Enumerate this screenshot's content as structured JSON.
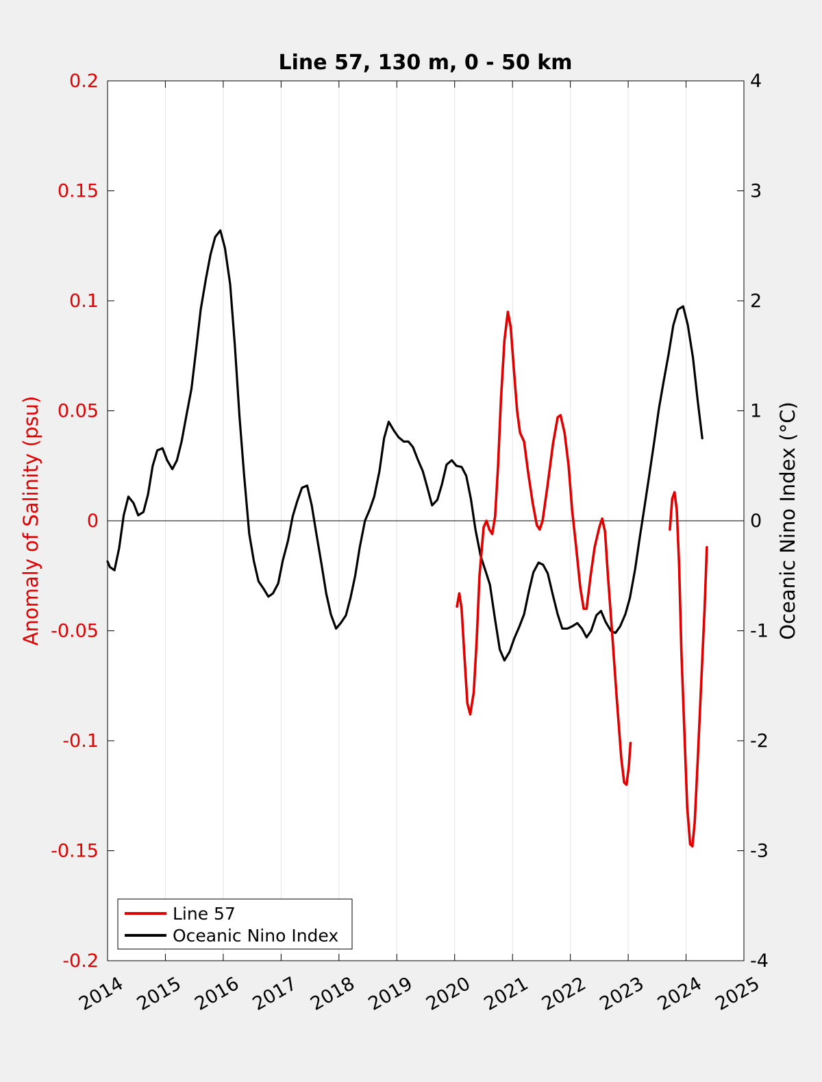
{
  "chart_data": {
    "type": "line",
    "title": "Line 57, 130 m, 0 - 50 km",
    "xlabel": "",
    "ylabel_left": "Anomaly of Salinity (psu)",
    "ylabel_right": "Oceanic Nino Index (°C)",
    "xlim": [
      2014,
      2025
    ],
    "ylim_left": [
      -0.2,
      0.2
    ],
    "ylim_right": [
      -4,
      4
    ],
    "x_ticks": [
      "2014",
      "2015",
      "2016",
      "2017",
      "2018",
      "2019",
      "2020",
      "2021",
      "2022",
      "2023",
      "2024",
      "2025"
    ],
    "y_ticks_left": [
      "0.2",
      "0.15",
      "0.1",
      "0.05",
      "0",
      "-0.05",
      "-0.1",
      "-0.15",
      "-0.2"
    ],
    "y_ticks_right": [
      "4",
      "3",
      "2",
      "1",
      "0",
      "-1",
      "-2",
      "-3",
      "-4"
    ],
    "grid": "vertical",
    "zero_line": true,
    "legend_position": "bottom-left",
    "colors": {
      "line57": "#e00000",
      "oni": "#000000",
      "left_axis": "#e00000",
      "right_axis": "#000000"
    },
    "series": [
      {
        "name": "Line 57",
        "axis": "left",
        "segments": [
          [
            [
              2020.04,
              -0.039
            ],
            [
              2020.08,
              -0.033
            ],
            [
              2020.12,
              -0.04
            ],
            [
              2020.17,
              -0.062
            ],
            [
              2020.22,
              -0.083
            ],
            [
              2020.27,
              -0.088
            ],
            [
              2020.33,
              -0.078
            ],
            [
              2020.38,
              -0.055
            ],
            [
              2020.43,
              -0.025
            ],
            [
              2020.5,
              -0.003
            ],
            [
              2020.55,
              0.0
            ],
            [
              2020.6,
              -0.004
            ],
            [
              2020.65,
              -0.006
            ],
            [
              2020.7,
              0.002
            ],
            [
              2020.75,
              0.025
            ],
            [
              2020.8,
              0.055
            ],
            [
              2020.86,
              0.082
            ],
            [
              2020.92,
              0.095
            ],
            [
              2020.97,
              0.088
            ],
            [
              2021.02,
              0.07
            ],
            [
              2021.08,
              0.05
            ],
            [
              2021.13,
              0.04
            ],
            [
              2021.2,
              0.036
            ],
            [
              2021.27,
              0.022
            ],
            [
              2021.35,
              0.008
            ],
            [
              2021.42,
              -0.002
            ],
            [
              2021.47,
              -0.004
            ],
            [
              2021.52,
              0.0
            ],
            [
              2021.6,
              0.015
            ],
            [
              2021.7,
              0.035
            ],
            [
              2021.78,
              0.047
            ],
            [
              2021.83,
              0.048
            ],
            [
              2021.9,
              0.04
            ],
            [
              2021.97,
              0.025
            ],
            [
              2022.03,
              0.005
            ],
            [
              2022.1,
              -0.012
            ],
            [
              2022.17,
              -0.03
            ],
            [
              2022.23,
              -0.04
            ],
            [
              2022.28,
              -0.04
            ],
            [
              2022.35,
              -0.025
            ],
            [
              2022.42,
              -0.012
            ],
            [
              2022.5,
              -0.003
            ],
            [
              2022.55,
              0.001
            ],
            [
              2022.6,
              -0.005
            ],
            [
              2022.65,
              -0.025
            ],
            [
              2022.72,
              -0.05
            ],
            [
              2022.8,
              -0.08
            ],
            [
              2022.88,
              -0.108
            ],
            [
              2022.93,
              -0.119
            ],
            [
              2022.97,
              -0.12
            ],
            [
              2023.01,
              -0.112
            ],
            [
              2023.04,
              -0.101
            ]
          ],
          [
            [
              2023.72,
              -0.004
            ],
            [
              2023.76,
              0.01
            ],
            [
              2023.8,
              0.013
            ],
            [
              2023.84,
              0.005
            ],
            [
              2023.88,
              -0.02
            ],
            [
              2023.92,
              -0.06
            ],
            [
              2023.97,
              -0.095
            ],
            [
              2024.02,
              -0.13
            ],
            [
              2024.07,
              -0.147
            ],
            [
              2024.11,
              -0.148
            ],
            [
              2024.15,
              -0.137
            ],
            [
              2024.2,
              -0.11
            ],
            [
              2024.26,
              -0.075
            ],
            [
              2024.32,
              -0.04
            ],
            [
              2024.36,
              -0.012
            ]
          ]
        ]
      },
      {
        "name": "Oceanic Nino Index",
        "axis": "right",
        "points": [
          [
            2014.0,
            -0.37
          ],
          [
            2014.04,
            -0.42
          ],
          [
            2014.12,
            -0.45
          ],
          [
            2014.2,
            -0.25
          ],
          [
            2014.28,
            0.05
          ],
          [
            2014.36,
            0.22
          ],
          [
            2014.45,
            0.16
          ],
          [
            2014.53,
            0.05
          ],
          [
            2014.62,
            0.08
          ],
          [
            2014.7,
            0.24
          ],
          [
            2014.78,
            0.5
          ],
          [
            2014.86,
            0.64
          ],
          [
            2014.95,
            0.66
          ],
          [
            2015.03,
            0.55
          ],
          [
            2015.12,
            0.47
          ],
          [
            2015.2,
            0.55
          ],
          [
            2015.28,
            0.72
          ],
          [
            2015.36,
            0.95
          ],
          [
            2015.45,
            1.2
          ],
          [
            2015.53,
            1.55
          ],
          [
            2015.61,
            1.92
          ],
          [
            2015.7,
            2.2
          ],
          [
            2015.78,
            2.42
          ],
          [
            2015.86,
            2.58
          ],
          [
            2015.95,
            2.64
          ],
          [
            2016.03,
            2.48
          ],
          [
            2016.12,
            2.15
          ],
          [
            2016.2,
            1.6
          ],
          [
            2016.28,
            0.95
          ],
          [
            2016.36,
            0.42
          ],
          [
            2016.45,
            -0.12
          ],
          [
            2016.53,
            -0.37
          ],
          [
            2016.61,
            -0.55
          ],
          [
            2016.7,
            -0.62
          ],
          [
            2016.78,
            -0.69
          ],
          [
            2016.86,
            -0.66
          ],
          [
            2016.95,
            -0.57
          ],
          [
            2017.03,
            -0.36
          ],
          [
            2017.12,
            -0.18
          ],
          [
            2017.2,
            0.04
          ],
          [
            2017.28,
            0.18
          ],
          [
            2017.36,
            0.3
          ],
          [
            2017.45,
            0.32
          ],
          [
            2017.53,
            0.14
          ],
          [
            2017.61,
            -0.12
          ],
          [
            2017.7,
            -0.4
          ],
          [
            2017.78,
            -0.66
          ],
          [
            2017.86,
            -0.85
          ],
          [
            2017.95,
            -0.98
          ],
          [
            2018.03,
            -0.93
          ],
          [
            2018.12,
            -0.86
          ],
          [
            2018.2,
            -0.7
          ],
          [
            2018.28,
            -0.5
          ],
          [
            2018.36,
            -0.24
          ],
          [
            2018.45,
            0.0
          ],
          [
            2018.53,
            0.1
          ],
          [
            2018.61,
            0.22
          ],
          [
            2018.7,
            0.45
          ],
          [
            2018.78,
            0.75
          ],
          [
            2018.86,
            0.9
          ],
          [
            2018.95,
            0.82
          ],
          [
            2019.03,
            0.76
          ],
          [
            2019.12,
            0.72
          ],
          [
            2019.2,
            0.72
          ],
          [
            2019.28,
            0.67
          ],
          [
            2019.36,
            0.56
          ],
          [
            2019.45,
            0.45
          ],
          [
            2019.53,
            0.3
          ],
          [
            2019.61,
            0.14
          ],
          [
            2019.7,
            0.19
          ],
          [
            2019.78,
            0.33
          ],
          [
            2019.86,
            0.51
          ],
          [
            2019.95,
            0.55
          ],
          [
            2020.03,
            0.5
          ],
          [
            2020.12,
            0.49
          ],
          [
            2020.2,
            0.41
          ],
          [
            2020.28,
            0.2
          ],
          [
            2020.36,
            -0.08
          ],
          [
            2020.45,
            -0.32
          ],
          [
            2020.53,
            -0.45
          ],
          [
            2020.61,
            -0.58
          ],
          [
            2020.7,
            -0.9
          ],
          [
            2020.78,
            -1.17
          ],
          [
            2020.86,
            -1.27
          ],
          [
            2020.95,
            -1.19
          ],
          [
            2021.03,
            -1.07
          ],
          [
            2021.12,
            -0.96
          ],
          [
            2021.2,
            -0.85
          ],
          [
            2021.28,
            -0.65
          ],
          [
            2021.36,
            -0.47
          ],
          [
            2021.45,
            -0.38
          ],
          [
            2021.53,
            -0.4
          ],
          [
            2021.61,
            -0.48
          ],
          [
            2021.7,
            -0.68
          ],
          [
            2021.78,
            -0.85
          ],
          [
            2021.86,
            -0.98
          ],
          [
            2021.95,
            -0.98
          ],
          [
            2022.03,
            -0.96
          ],
          [
            2022.12,
            -0.93
          ],
          [
            2022.2,
            -0.98
          ],
          [
            2022.28,
            -1.06
          ],
          [
            2022.36,
            -1.0
          ],
          [
            2022.45,
            -0.86
          ],
          [
            2022.53,
            -0.82
          ],
          [
            2022.61,
            -0.92
          ],
          [
            2022.7,
            -1.0
          ],
          [
            2022.78,
            -1.02
          ],
          [
            2022.86,
            -0.96
          ],
          [
            2022.95,
            -0.85
          ],
          [
            2023.03,
            -0.7
          ],
          [
            2023.12,
            -0.44
          ],
          [
            2023.2,
            -0.15
          ],
          [
            2023.28,
            0.12
          ],
          [
            2023.36,
            0.4
          ],
          [
            2023.45,
            0.72
          ],
          [
            2023.53,
            1.02
          ],
          [
            2023.61,
            1.26
          ],
          [
            2023.7,
            1.52
          ],
          [
            2023.78,
            1.78
          ],
          [
            2023.86,
            1.92
          ],
          [
            2023.95,
            1.95
          ],
          [
            2024.03,
            1.78
          ],
          [
            2024.12,
            1.48
          ],
          [
            2024.2,
            1.1
          ],
          [
            2024.28,
            0.75
          ]
        ]
      }
    ]
  }
}
